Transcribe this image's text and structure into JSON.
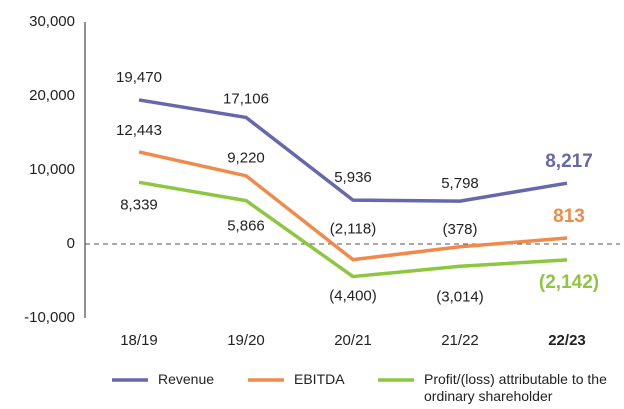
{
  "chart_data": {
    "type": "line",
    "categories": [
      "18/19",
      "19/20",
      "20/21",
      "21/22",
      "22/23"
    ],
    "series": [
      {
        "name": "Revenue",
        "color": "#6767ad",
        "values": [
          19470,
          17106,
          5936,
          5798,
          8217
        ],
        "value_labels": [
          "19,470",
          "17,106",
          "5,936",
          "5,798",
          "8,217"
        ]
      },
      {
        "name": "EBITDA",
        "color": "#f08a4b",
        "values": [
          12443,
          9220,
          -2118,
          -378,
          813
        ],
        "value_labels": [
          "12,443",
          "9,220",
          "(2,118)",
          "(378)",
          "813"
        ]
      },
      {
        "name": "Profit/(loss) attributable to the ordinary shareholder",
        "color": "#8dc63f",
        "values": [
          8339,
          5866,
          -4400,
          -3014,
          -2142
        ],
        "value_labels": [
          "8,339",
          "5,866",
          "(4,400)",
          "(3,014)",
          "(2,142)"
        ]
      }
    ],
    "ylim": [
      -10000,
      30000
    ],
    "yticks": [
      {
        "value": -10000,
        "label": "-10,000"
      },
      0,
      {
        "value": 10000,
        "label": "10,000"
      },
      {
        "value": 20000,
        "label": "20,000"
      },
      {
        "value": 30000,
        "label": "30,000"
      }
    ]
  }
}
